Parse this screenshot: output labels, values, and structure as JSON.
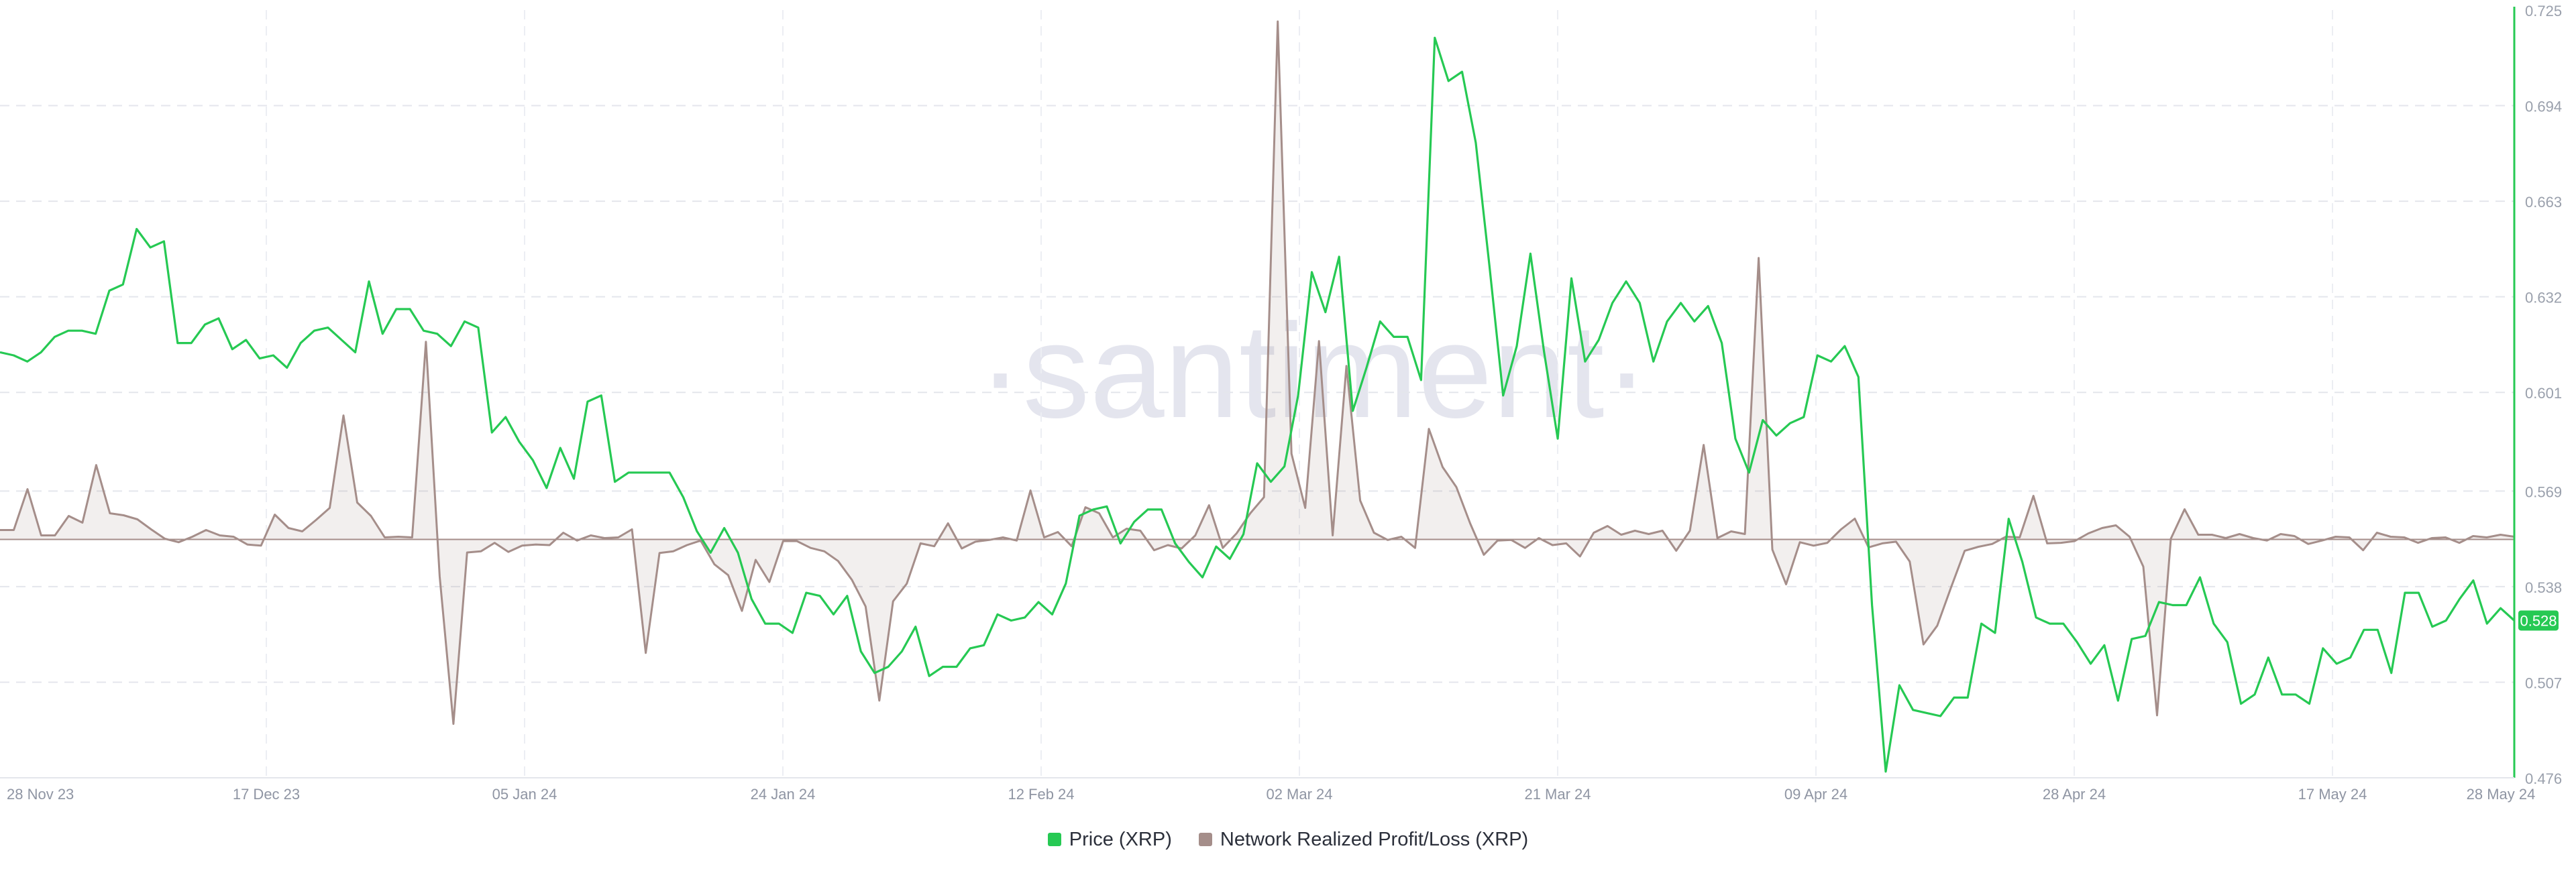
{
  "watermark": "·santiment·",
  "legend": [
    {
      "label": "Price (XRP)",
      "color": "#26c953"
    },
    {
      "label": "Network Realized Profit/Loss (XRP)",
      "color": "#a58e8a"
    }
  ],
  "chart_data": {
    "type": "line",
    "x_tick_labels": [
      "28 Nov 23",
      "17 Dec 23",
      "05 Jan 24",
      "24 Jan 24",
      "12 Feb 24",
      "02 Mar 24",
      "21 Mar 24",
      "09 Apr 24",
      "28 Apr 24",
      "17 May 24",
      "28 May 24"
    ],
    "y_axis_right": {
      "ticks": [
        "0.725",
        "0.694",
        "0.663",
        "0.632",
        "0.601",
        "0.569",
        "0.538",
        "0.507",
        "0.476"
      ],
      "range": [
        0.476,
        0.725
      ],
      "color": "#26c953"
    },
    "grid": "horizontal dashed",
    "legend_position": "bottom-center",
    "current_price_label": "0.528",
    "series": [
      {
        "name": "Price (XRP)",
        "color": "#26c953",
        "values": [
          0.614,
          0.613,
          0.611,
          0.614,
          0.619,
          0.621,
          0.621,
          0.62,
          0.634,
          0.636,
          0.654,
          0.648,
          0.65,
          0.617,
          0.617,
          0.623,
          0.625,
          0.615,
          0.618,
          0.612,
          0.613,
          0.609,
          0.617,
          0.621,
          0.622,
          0.618,
          0.614,
          0.637,
          0.62,
          0.628,
          0.628,
          0.621,
          0.62,
          0.616,
          0.624,
          0.622,
          0.588,
          0.593,
          0.585,
          0.579,
          0.57,
          0.583,
          0.573,
          0.598,
          0.6,
          0.572,
          0.575,
          0.575,
          0.575,
          0.575,
          0.567,
          0.556,
          0.549,
          0.557,
          0.549,
          0.534,
          0.526,
          0.526,
          0.523,
          0.536,
          0.535,
          0.529,
          0.535,
          0.517,
          0.51,
          0.512,
          0.517,
          0.525,
          0.509,
          0.512,
          0.512,
          0.518,
          0.519,
          0.529,
          0.527,
          0.528,
          0.533,
          0.529,
          0.539,
          0.561,
          0.563,
          0.564,
          0.552,
          0.559,
          0.563,
          0.563,
          0.552,
          0.546,
          0.541,
          0.551,
          0.547,
          0.555,
          0.578,
          0.572,
          0.577,
          0.6,
          0.64,
          0.627,
          0.645,
          0.595,
          0.609,
          0.624,
          0.619,
          0.619,
          0.605,
          0.716,
          0.702,
          0.705,
          0.682,
          0.642,
          0.6,
          0.616,
          0.646,
          0.614,
          0.586,
          0.638,
          0.611,
          0.618,
          0.63,
          0.637,
          0.63,
          0.611,
          0.624,
          0.63,
          0.624,
          0.629,
          0.617,
          0.586,
          0.575,
          0.592,
          0.587,
          0.591,
          0.593,
          0.613,
          0.611,
          0.616,
          0.606,
          0.532,
          0.478,
          0.506,
          0.498,
          0.497,
          0.496,
          0.502,
          0.502,
          0.526,
          0.523,
          0.56,
          0.546,
          0.528,
          0.526,
          0.526,
          0.52,
          0.513,
          0.519,
          0.501,
          0.521,
          0.522,
          0.533,
          0.532,
          0.532,
          0.541,
          0.526,
          0.52,
          0.5,
          0.503,
          0.515,
          0.503,
          0.503,
          0.5,
          0.518,
          0.513,
          0.515,
          0.524,
          0.524,
          0.51,
          0.536,
          0.536,
          0.525,
          0.527,
          0.534,
          0.54,
          0.526,
          0.531,
          0.527
        ]
      },
      {
        "name": "Network Realized Profit/Loss (XRP)",
        "color": "#a58e8a",
        "baseline_fraction": 0.5,
        "values": [
          0.14,
          0.14,
          0.75,
          0.06,
          0.06,
          0.35,
          0.25,
          1.11,
          0.39,
          0.36,
          0.3,
          0.15,
          0.01,
          -0.05,
          0.04,
          0.14,
          0.06,
          0.04,
          -0.09,
          -0.11,
          0.37,
          0.17,
          0.12,
          0.29,
          0.47,
          1.85,
          0.55,
          0.35,
          0.03,
          0.04,
          0.03,
          2.95,
          -0.65,
          -3.25,
          -0.23,
          -0.21,
          -0.06,
          -0.22,
          -0.11,
          -0.09,
          -0.1,
          0.1,
          -0.02,
          0.06,
          0.02,
          0.03,
          0.15,
          -2.0,
          -0.24,
          -0.21,
          -0.1,
          -0.02,
          -0.44,
          -0.63,
          -1.26,
          -0.36,
          -0.75,
          -0.03,
          -0.03,
          -0.15,
          -0.21,
          -0.38,
          -0.71,
          -1.18,
          -2.84,
          -1.09,
          -0.78,
          -0.07,
          -0.12,
          0.24,
          -0.16,
          -0.04,
          -0.01,
          0.03,
          -0.02,
          0.73,
          0.03,
          0.11,
          -0.12,
          0.48,
          0.39,
          0.03,
          0.16,
          0.13,
          -0.19,
          -0.1,
          -0.16,
          0.06,
          0.51,
          -0.15,
          0.09,
          0.39,
          0.63,
          7.73,
          1.28,
          0.47,
          2.96,
          0.06,
          2.59,
          0.58,
          0.1,
          -0.01,
          0.04,
          -0.15,
          1.65,
          1.08,
          0.78,
          0.24,
          -0.27,
          -0.02,
          -0.01,
          -0.15,
          0.02,
          -0.1,
          -0.07,
          -0.3,
          0.1,
          0.2,
          0.07,
          0.13,
          0.08,
          0.13,
          -0.2,
          0.13,
          1.41,
          0.02,
          0.12,
          0.08,
          4.2,
          -0.18,
          -0.79,
          -0.05,
          -0.11,
          -0.06,
          0.15,
          0.31,
          -0.14,
          -0.07,
          -0.04,
          -0.39,
          -1.85,
          -1.52,
          -0.85,
          -0.2,
          -0.13,
          -0.08,
          0.04,
          0.03,
          0.65,
          -0.07,
          -0.06,
          -0.03,
          0.09,
          0.17,
          0.21,
          0.04,
          -0.48,
          -3.1,
          0.01,
          0.45,
          0.07,
          0.07,
          0.02,
          0.08,
          0.02,
          -0.02,
          0.08,
          0.05,
          -0.08,
          -0.02,
          0.04,
          0.03,
          -0.19,
          0.1,
          0.04,
          0.03,
          -0.06,
          0.02,
          0.03,
          -0.06,
          0.05,
          0.03,
          0.07,
          0.04
        ]
      }
    ]
  }
}
